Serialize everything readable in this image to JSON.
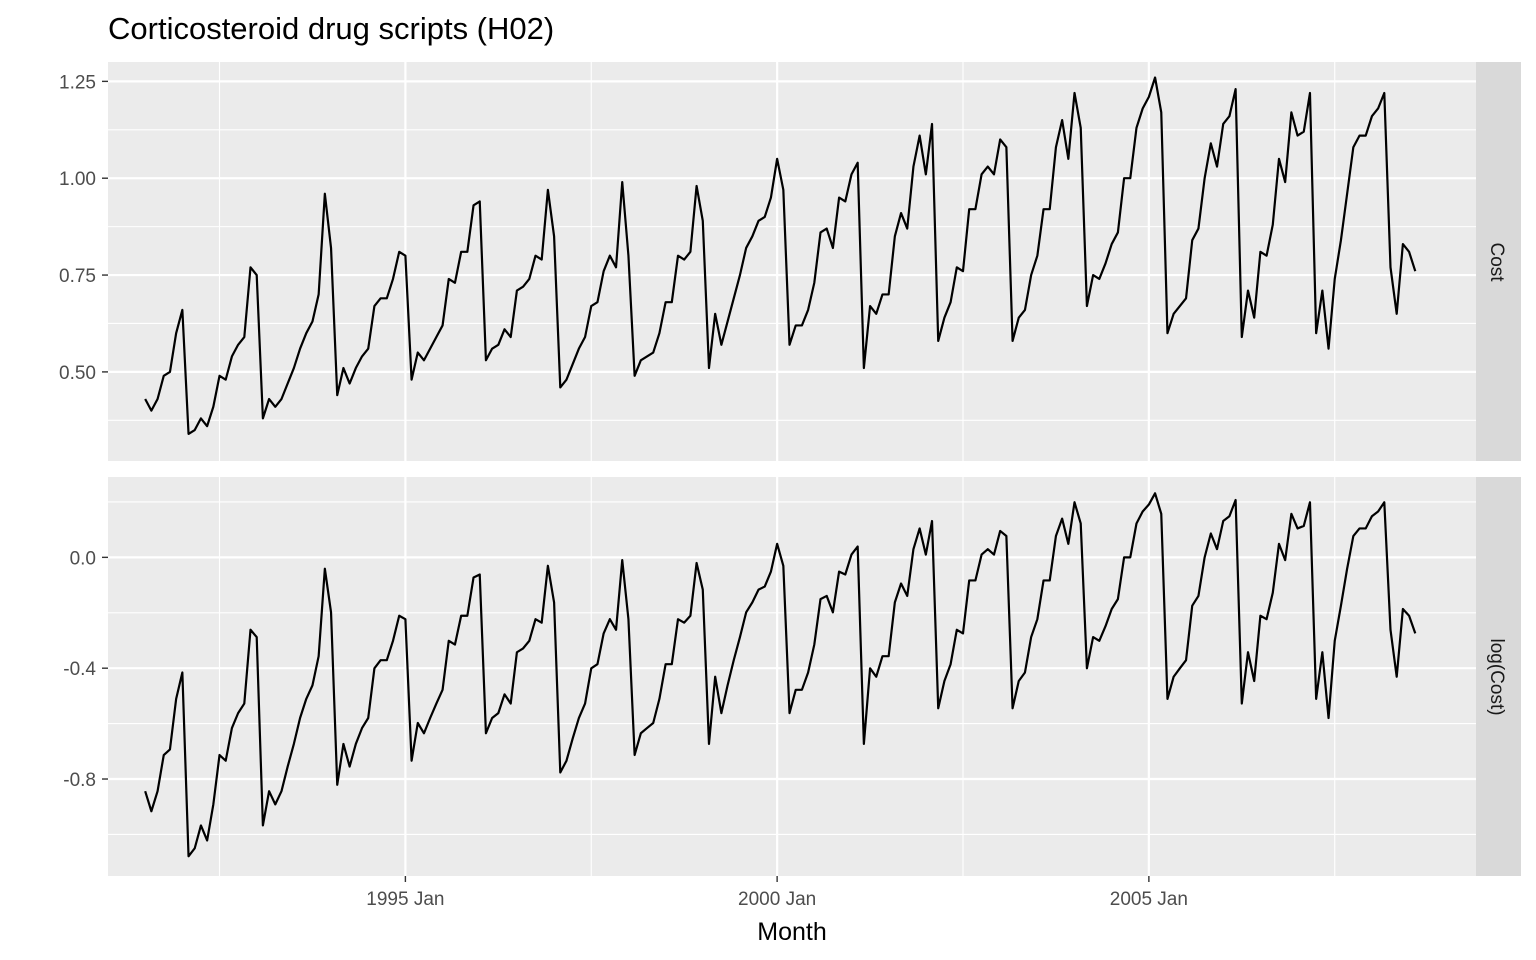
{
  "chart_data": {
    "type": "line",
    "title": "Corticosteroid drug scripts (H02)",
    "xlabel": "Month",
    "x_start": "1991 Jul",
    "x_end": "2008 Jun",
    "x_ticks": [
      {
        "label": "1995 Jan",
        "year": 1995
      },
      {
        "label": "2000 Jan",
        "year": 2000
      },
      {
        "label": "2005 Jan",
        "year": 2005
      }
    ],
    "x_minor_years": [
      1992.5,
      1997.5,
      2002.5,
      2007.5
    ],
    "xlim": [
      1991.0,
      2009.4
    ],
    "facets": [
      {
        "name": "Cost",
        "strip_label": "Cost",
        "ylim": [
          0.27,
          1.3
        ],
        "y_ticks": [
          {
            "value": 0.5,
            "label": "0.50"
          },
          {
            "value": 0.75,
            "label": "0.75"
          },
          {
            "value": 1.0,
            "label": "1.00"
          },
          {
            "value": 1.25,
            "label": "1.25"
          }
        ],
        "y_minor": [
          0.375,
          0.625,
          0.875,
          1.125
        ],
        "series_key": "cost"
      },
      {
        "name": "log(Cost)",
        "strip_label": "log(Cost)",
        "ylim": [
          -1.15,
          0.29
        ],
        "y_ticks": [
          {
            "value": -0.8,
            "label": "-0.8"
          },
          {
            "value": -0.4,
            "label": "-0.4"
          },
          {
            "value": 0.0,
            "label": "0.0"
          }
        ],
        "y_minor": [
          -1.0,
          -0.6,
          -0.2,
          0.2
        ],
        "series_key": "log_cost"
      }
    ],
    "series": [
      {
        "name": "Cost",
        "start": "1991 Jul",
        "values": [
          0.43,
          0.4,
          0.43,
          0.49,
          0.5,
          0.6,
          0.66,
          0.34,
          0.35,
          0.38,
          0.36,
          0.41,
          0.49,
          0.48,
          0.54,
          0.57,
          0.59,
          0.77,
          0.75,
          0.38,
          0.43,
          0.41,
          0.43,
          0.47,
          0.51,
          0.56,
          0.6,
          0.63,
          0.7,
          0.96,
          0.82,
          0.44,
          0.51,
          0.47,
          0.51,
          0.54,
          0.56,
          0.67,
          0.69,
          0.69,
          0.74,
          0.81,
          0.8,
          0.48,
          0.55,
          0.53,
          0.56,
          0.59,
          0.62,
          0.74,
          0.73,
          0.81,
          0.81,
          0.93,
          0.94,
          0.53,
          0.56,
          0.57,
          0.61,
          0.59,
          0.71,
          0.72,
          0.74,
          0.8,
          0.79,
          0.97,
          0.85,
          0.46,
          0.48,
          0.52,
          0.56,
          0.59,
          0.67,
          0.68,
          0.76,
          0.8,
          0.77,
          0.99,
          0.8,
          0.49,
          0.53,
          0.54,
          0.55,
          0.6,
          0.68,
          0.68,
          0.8,
          0.79,
          0.81,
          0.98,
          0.89,
          0.51,
          0.65,
          0.57,
          0.63,
          0.69,
          0.75,
          0.82,
          0.85,
          0.89,
          0.9,
          0.95,
          1.05,
          0.97,
          0.57,
          0.62,
          0.62,
          0.66,
          0.73,
          0.86,
          0.87,
          0.82,
          0.95,
          0.94,
          1.01,
          1.04,
          0.51,
          0.67,
          0.65,
          0.7,
          0.7,
          0.85,
          0.91,
          0.87,
          1.03,
          1.11,
          1.01,
          1.14,
          0.58,
          0.64,
          0.68,
          0.77,
          0.76,
          0.92,
          0.92,
          1.01,
          1.03,
          1.01,
          1.1,
          1.08,
          0.58,
          0.64,
          0.66,
          0.75,
          0.8,
          0.92,
          0.92,
          1.08,
          1.15,
          1.05,
          1.22,
          1.13,
          0.67,
          0.75,
          0.74,
          0.78,
          0.83,
          0.86,
          1.0,
          1.0,
          1.13,
          1.18,
          1.21,
          1.26,
          1.17,
          0.6,
          0.65,
          0.67,
          0.69,
          0.84,
          0.87,
          1.0,
          1.09,
          1.03,
          1.14,
          1.16,
          1.23,
          0.59,
          0.71,
          0.64,
          0.81,
          0.8,
          0.88,
          1.05,
          0.99,
          1.17,
          1.11,
          1.12,
          1.22,
          0.6,
          0.71,
          0.56,
          0.74,
          0.84,
          0.96,
          1.08,
          1.11,
          1.11,
          1.16,
          1.18,
          1.22,
          0.77,
          0.65,
          0.83,
          0.81,
          0.76
        ]
      }
    ]
  }
}
